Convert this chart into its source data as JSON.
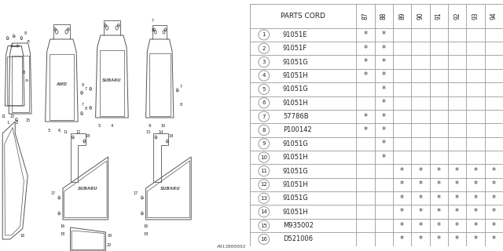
{
  "catalog_code": "A913B00092",
  "background_color": "#ffffff",
  "columns": [
    "PARTS CORD",
    "87",
    "88",
    "89",
    "90",
    "91",
    "92",
    "93",
    "94"
  ],
  "rows": [
    {
      "ref": "1",
      "part": "91051E",
      "marks": [
        1,
        1,
        0,
        0,
        0,
        0,
        0,
        0
      ]
    },
    {
      "ref": "2",
      "part": "91051F",
      "marks": [
        1,
        1,
        0,
        0,
        0,
        0,
        0,
        0
      ]
    },
    {
      "ref": "3",
      "part": "91051G",
      "marks": [
        1,
        1,
        0,
        0,
        0,
        0,
        0,
        0
      ]
    },
    {
      "ref": "4",
      "part": "91051H",
      "marks": [
        1,
        1,
        0,
        0,
        0,
        0,
        0,
        0
      ]
    },
    {
      "ref": "5",
      "part": "91051G",
      "marks": [
        0,
        1,
        0,
        0,
        0,
        0,
        0,
        0
      ]
    },
    {
      "ref": "6",
      "part": "91051H",
      "marks": [
        0,
        1,
        0,
        0,
        0,
        0,
        0,
        0
      ]
    },
    {
      "ref": "7",
      "part": "57786B",
      "marks": [
        1,
        1,
        0,
        0,
        0,
        0,
        0,
        0
      ]
    },
    {
      "ref": "8",
      "part": "P100142",
      "marks": [
        1,
        1,
        0,
        0,
        0,
        0,
        0,
        0
      ]
    },
    {
      "ref": "9",
      "part": "91051G",
      "marks": [
        0,
        1,
        0,
        0,
        0,
        0,
        0,
        0
      ]
    },
    {
      "ref": "10",
      "part": "91051H",
      "marks": [
        0,
        1,
        0,
        0,
        0,
        0,
        0,
        0
      ]
    },
    {
      "ref": "11",
      "part": "91051G",
      "marks": [
        0,
        0,
        1,
        1,
        1,
        1,
        1,
        1
      ]
    },
    {
      "ref": "12",
      "part": "91051H",
      "marks": [
        0,
        0,
        1,
        1,
        1,
        1,
        1,
        1
      ]
    },
    {
      "ref": "13",
      "part": "91051G",
      "marks": [
        0,
        0,
        1,
        1,
        1,
        1,
        1,
        1
      ]
    },
    {
      "ref": "14",
      "part": "91051H",
      "marks": [
        0,
        0,
        1,
        1,
        1,
        1,
        1,
        1
      ]
    },
    {
      "ref": "15",
      "part": "M935002",
      "marks": [
        0,
        0,
        1,
        1,
        1,
        1,
        1,
        1
      ]
    },
    {
      "ref": "16",
      "part": "D521006",
      "marks": [
        0,
        0,
        1,
        1,
        1,
        1,
        1,
        1
      ]
    }
  ],
  "table_border_color": "#999999",
  "text_color": "#222222",
  "star_color": "#444444",
  "line_color": "#555555"
}
